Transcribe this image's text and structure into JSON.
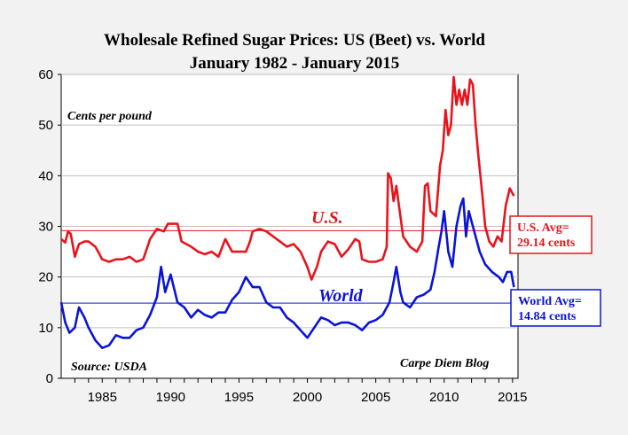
{
  "colors": {
    "us": "#e8141b",
    "world": "#0a14d8",
    "grid": "#bfbfbf",
    "plot_bg": "#ffffff",
    "page_bg": "#f2f2f2"
  },
  "chart_data": {
    "type": "line",
    "title": "Wholesale Refined Sugar Prices: US (Beet) vs. World",
    "subtitle": "January 1982 - January 2015",
    "ylabel": "Cents per pound",
    "xlabel": "",
    "xlim": [
      1982,
      2015.4
    ],
    "ylim": [
      0,
      60
    ],
    "grid": true,
    "x_ticks": [
      1985,
      1990,
      1995,
      2000,
      2005,
      2010,
      2015
    ],
    "y_ticks": [
      0,
      10,
      20,
      30,
      40,
      50,
      60
    ],
    "source": "Source: USDA",
    "credit": "Carpe Diem Blog",
    "series": [
      {
        "name": "U.S.",
        "label": "U.S.",
        "average": 29.14,
        "average_label_line1": "U.S. Avg=",
        "average_label_line2": "29.14 cents",
        "points": [
          [
            1982.0,
            27.5
          ],
          [
            1982.3,
            26.8
          ],
          [
            1982.5,
            29.0
          ],
          [
            1982.7,
            28.5
          ],
          [
            1983.0,
            24.0
          ],
          [
            1983.3,
            26.5
          ],
          [
            1983.7,
            27.0
          ],
          [
            1984.0,
            27.0
          ],
          [
            1984.5,
            26.0
          ],
          [
            1985.0,
            23.5
          ],
          [
            1985.5,
            23.0
          ],
          [
            1986.0,
            23.5
          ],
          [
            1986.5,
            23.5
          ],
          [
            1987.0,
            24.0
          ],
          [
            1987.5,
            23.0
          ],
          [
            1988.0,
            23.5
          ],
          [
            1988.5,
            27.5
          ],
          [
            1989.0,
            29.5
          ],
          [
            1989.5,
            29.0
          ],
          [
            1989.8,
            30.5
          ],
          [
            1990.5,
            30.5
          ],
          [
            1990.8,
            27.0
          ],
          [
            1991.5,
            26.0
          ],
          [
            1992.0,
            25.0
          ],
          [
            1992.5,
            24.5
          ],
          [
            1993.0,
            25.0
          ],
          [
            1993.5,
            24.0
          ],
          [
            1994.0,
            27.5
          ],
          [
            1994.5,
            25.0
          ],
          [
            1995.0,
            25.0
          ],
          [
            1995.5,
            25.0
          ],
          [
            1995.8,
            27.0
          ],
          [
            1996.0,
            29.0
          ],
          [
            1996.5,
            29.5
          ],
          [
            1997.0,
            29.0
          ],
          [
            1997.5,
            28.0
          ],
          [
            1998.0,
            27.0
          ],
          [
            1998.5,
            26.0
          ],
          [
            1999.0,
            26.5
          ],
          [
            1999.5,
            25.0
          ],
          [
            2000.0,
            22.0
          ],
          [
            2000.3,
            19.5
          ],
          [
            2000.7,
            22.0
          ],
          [
            2001.0,
            25.0
          ],
          [
            2001.5,
            27.0
          ],
          [
            2002.0,
            26.5
          ],
          [
            2002.5,
            24.0
          ],
          [
            2003.0,
            25.5
          ],
          [
            2003.5,
            27.5
          ],
          [
            2003.8,
            27.0
          ],
          [
            2004.0,
            23.5
          ],
          [
            2004.5,
            23.0
          ],
          [
            2005.0,
            23.0
          ],
          [
            2005.5,
            23.5
          ],
          [
            2005.8,
            26.0
          ],
          [
            2005.9,
            40.5
          ],
          [
            2006.1,
            39.5
          ],
          [
            2006.3,
            35.0
          ],
          [
            2006.5,
            38.0
          ],
          [
            2006.8,
            32.0
          ],
          [
            2007.0,
            28.0
          ],
          [
            2007.5,
            26.0
          ],
          [
            2008.0,
            25.0
          ],
          [
            2008.4,
            27.0
          ],
          [
            2008.6,
            38.0
          ],
          [
            2008.8,
            38.5
          ],
          [
            2009.0,
            33.0
          ],
          [
            2009.4,
            32.0
          ],
          [
            2009.7,
            42.0
          ],
          [
            2009.9,
            45.0
          ],
          [
            2010.1,
            53.0
          ],
          [
            2010.3,
            48.0
          ],
          [
            2010.5,
            50.0
          ],
          [
            2010.7,
            59.5
          ],
          [
            2010.9,
            54.0
          ],
          [
            2011.1,
            57.0
          ],
          [
            2011.3,
            54.0
          ],
          [
            2011.5,
            57.0
          ],
          [
            2011.7,
            54.0
          ],
          [
            2011.9,
            59.0
          ],
          [
            2012.1,
            58.0
          ],
          [
            2012.3,
            50.0
          ],
          [
            2012.5,
            44.0
          ],
          [
            2012.8,
            36.0
          ],
          [
            2013.0,
            30.0
          ],
          [
            2013.3,
            27.0
          ],
          [
            2013.6,
            26.0
          ],
          [
            2013.9,
            28.0
          ],
          [
            2014.2,
            27.0
          ],
          [
            2014.5,
            34.0
          ],
          [
            2014.8,
            37.5
          ],
          [
            2015.0,
            36.5
          ],
          [
            2015.1,
            36.0
          ]
        ]
      },
      {
        "name": "World",
        "label": "World",
        "average": 14.84,
        "average_label_line1": "World Avg=",
        "average_label_line2": "14.84 cents",
        "points": [
          [
            1982.0,
            15.0
          ],
          [
            1982.3,
            11.0
          ],
          [
            1982.6,
            9.0
          ],
          [
            1983.0,
            10.0
          ],
          [
            1983.3,
            14.0
          ],
          [
            1983.7,
            12.0
          ],
          [
            1984.0,
            10.0
          ],
          [
            1984.5,
            7.5
          ],
          [
            1985.0,
            6.0
          ],
          [
            1985.5,
            6.5
          ],
          [
            1986.0,
            8.5
          ],
          [
            1986.5,
            8.0
          ],
          [
            1987.0,
            8.0
          ],
          [
            1987.5,
            9.5
          ],
          [
            1988.0,
            10.0
          ],
          [
            1988.5,
            12.5
          ],
          [
            1989.0,
            16.0
          ],
          [
            1989.3,
            22.0
          ],
          [
            1989.6,
            17.0
          ],
          [
            1990.0,
            20.5
          ],
          [
            1990.5,
            15.0
          ],
          [
            1991.0,
            14.0
          ],
          [
            1991.5,
            12.0
          ],
          [
            1992.0,
            13.5
          ],
          [
            1992.5,
            12.5
          ],
          [
            1993.0,
            12.0
          ],
          [
            1993.5,
            13.0
          ],
          [
            1994.0,
            13.0
          ],
          [
            1994.5,
            15.5
          ],
          [
            1995.0,
            17.0
          ],
          [
            1995.5,
            20.0
          ],
          [
            1996.0,
            18.0
          ],
          [
            1996.5,
            18.0
          ],
          [
            1997.0,
            15.0
          ],
          [
            1997.5,
            14.0
          ],
          [
            1998.0,
            14.0
          ],
          [
            1998.5,
            12.0
          ],
          [
            1999.0,
            11.0
          ],
          [
            1999.5,
            9.5
          ],
          [
            2000.0,
            8.0
          ],
          [
            2000.5,
            10.0
          ],
          [
            2001.0,
            12.0
          ],
          [
            2001.5,
            11.5
          ],
          [
            2002.0,
            10.5
          ],
          [
            2002.5,
            11.0
          ],
          [
            2003.0,
            11.0
          ],
          [
            2003.5,
            10.5
          ],
          [
            2004.0,
            9.5
          ],
          [
            2004.5,
            11.0
          ],
          [
            2005.0,
            11.5
          ],
          [
            2005.5,
            12.5
          ],
          [
            2006.0,
            15.0
          ],
          [
            2006.3,
            19.0
          ],
          [
            2006.5,
            22.0
          ],
          [
            2006.8,
            17.0
          ],
          [
            2007.0,
            15.0
          ],
          [
            2007.5,
            14.0
          ],
          [
            2008.0,
            16.0
          ],
          [
            2008.5,
            16.5
          ],
          [
            2009.0,
            17.5
          ],
          [
            2009.3,
            21.0
          ],
          [
            2009.6,
            26.0
          ],
          [
            2009.8,
            29.0
          ],
          [
            2010.0,
            33.0
          ],
          [
            2010.3,
            25.0
          ],
          [
            2010.6,
            22.0
          ],
          [
            2010.9,
            30.0
          ],
          [
            2011.2,
            34.0
          ],
          [
            2011.4,
            35.5
          ],
          [
            2011.6,
            28.0
          ],
          [
            2011.8,
            33.0
          ],
          [
            2012.0,
            31.0
          ],
          [
            2012.3,
            28.0
          ],
          [
            2012.6,
            25.0
          ],
          [
            2013.0,
            22.5
          ],
          [
            2013.5,
            21.0
          ],
          [
            2014.0,
            20.0
          ],
          [
            2014.3,
            19.0
          ],
          [
            2014.6,
            21.0
          ],
          [
            2014.9,
            21.0
          ],
          [
            2015.1,
            18.0
          ]
        ]
      }
    ]
  }
}
